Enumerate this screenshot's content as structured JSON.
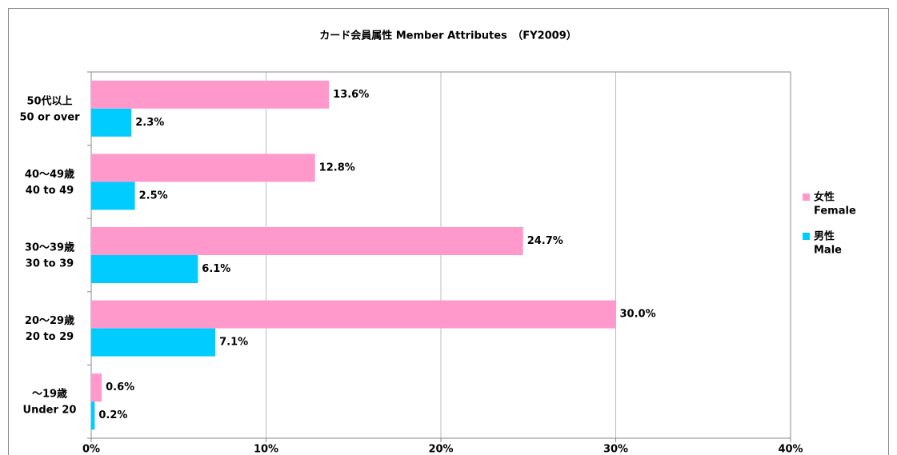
{
  "chart_data": {
    "type": "hbar",
    "title": "カード会員属性 Member Attributes　（FY2009）",
    "categories": [
      [
        "50代以上",
        "50 or over"
      ],
      [
        "40～49歳",
        "40 to 49"
      ],
      [
        "30～39歳",
        "30 to 39"
      ],
      [
        "20～29歳",
        "20 to 29"
      ],
      [
        "～19歳",
        "Under 20"
      ]
    ],
    "series": [
      {
        "name": [
          "女性",
          "Female"
        ],
        "color": "#ff99cc",
        "values": [
          13.6,
          12.8,
          24.7,
          30.0,
          0.6
        ],
        "value_labels": [
          "13.6%",
          "12.8%",
          "24.7%",
          "30.0%",
          "0.6%"
        ]
      },
      {
        "name": [
          "男性",
          "Male"
        ],
        "color": "#00ccff",
        "values": [
          2.3,
          2.5,
          6.1,
          7.1,
          0.2
        ],
        "value_labels": [
          "2.3%",
          "2.5%",
          "6.1%",
          "7.1%",
          "0.2%"
        ]
      }
    ],
    "xlim": [
      0,
      40
    ],
    "xticks": [
      {
        "value": 0,
        "label": "0%"
      },
      {
        "value": 10,
        "label": "10%"
      },
      {
        "value": 20,
        "label": "20%"
      },
      {
        "value": 30,
        "label": "30%"
      },
      {
        "value": 40,
        "label": "40%"
      }
    ],
    "grid": true,
    "legend": "right"
  }
}
